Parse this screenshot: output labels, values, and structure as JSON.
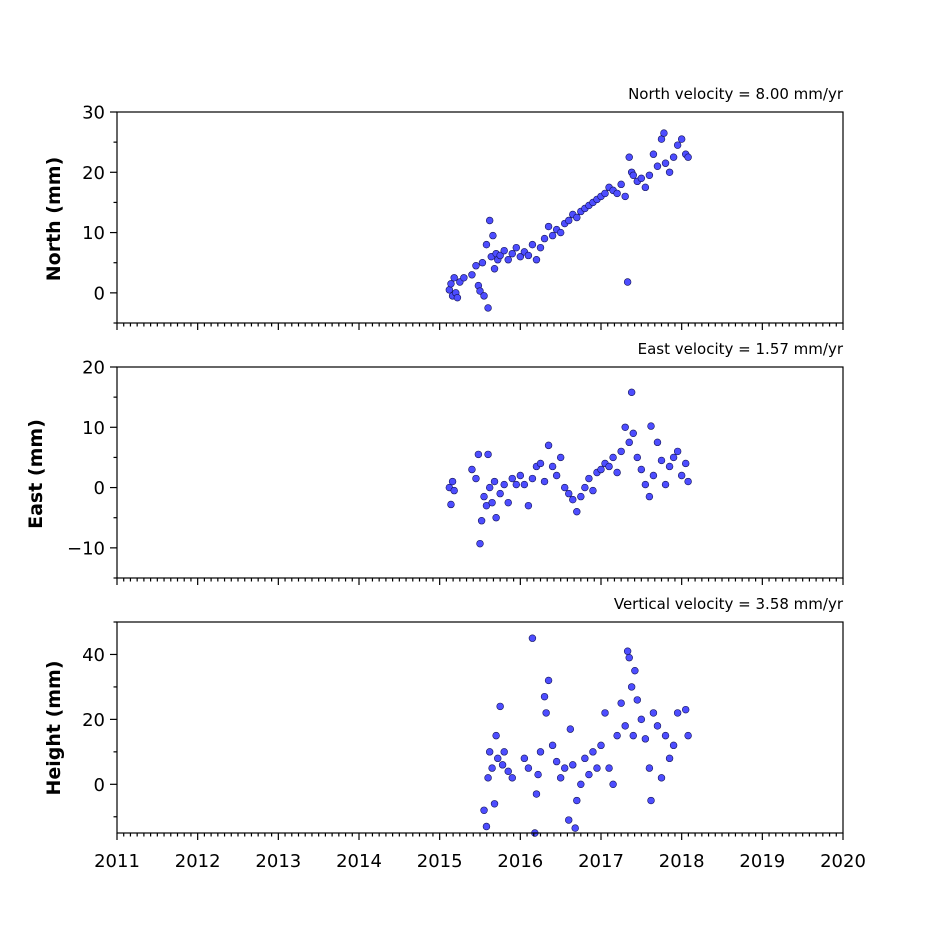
{
  "chart_data": [
    {
      "type": "scatter",
      "title": "North velocity = 8.00 mm/yr",
      "ylabel": "North (mm)",
      "xlim": [
        2011,
        2020
      ],
      "ylim": [
        -5,
        30
      ],
      "yticks": [
        0,
        10,
        20,
        30
      ],
      "xticks": [
        2011,
        2012,
        2013,
        2014,
        2015,
        2016,
        2017,
        2018,
        2019,
        2020
      ],
      "x_tick_labels_shown": false,
      "series": [
        {
          "x": [
            2015.12,
            2015.14,
            2015.16,
            2015.18,
            2015.2,
            2015.22,
            2015.25,
            2015.3,
            2015.4,
            2015.45,
            2015.48,
            2015.5,
            2015.53,
            2015.55,
            2015.58,
            2015.6,
            2015.62,
            2015.64,
            2015.66,
            2015.68,
            2015.7,
            2015.72,
            2015.75,
            2015.8,
            2015.85,
            2015.9,
            2015.95,
            2016.0,
            2016.05,
            2016.1,
            2016.15,
            2016.2,
            2016.25,
            2016.3,
            2016.35,
            2016.4,
            2016.45,
            2016.5,
            2016.55,
            2016.6,
            2016.65,
            2016.7,
            2016.75,
            2016.8,
            2016.85,
            2016.9,
            2016.95,
            2017.0,
            2017.05,
            2017.1,
            2017.15,
            2017.2,
            2017.25,
            2017.3,
            2017.33,
            2017.35,
            2017.38,
            2017.4,
            2017.45,
            2017.5,
            2017.55,
            2017.6,
            2017.65,
            2017.7,
            2017.75,
            2017.78,
            2017.8,
            2017.85,
            2017.9,
            2017.95,
            2018.0,
            2018.05,
            2018.08
          ],
          "y": [
            0.5,
            1.5,
            -0.5,
            2.5,
            0.0,
            -0.8,
            1.8,
            2.5,
            3.0,
            4.5,
            1.2,
            0.3,
            5.0,
            -0.5,
            8.0,
            -2.5,
            12.0,
            6.0,
            9.5,
            4.0,
            6.5,
            5.5,
            6.2,
            7.0,
            5.5,
            6.5,
            7.5,
            6.0,
            6.8,
            6.2,
            8.0,
            5.5,
            7.5,
            9.0,
            11.0,
            9.5,
            10.5,
            10.0,
            11.5,
            12.0,
            13.0,
            12.5,
            13.5,
            14.0,
            14.5,
            15.0,
            15.5,
            16.0,
            16.5,
            17.5,
            17.0,
            16.5,
            18.0,
            16.0,
            1.8,
            22.5,
            20.0,
            19.5,
            18.5,
            19.0,
            17.5,
            19.5,
            23.0,
            21.0,
            25.5,
            26.5,
            21.5,
            20.0,
            22.5,
            24.5,
            25.5,
            23.0,
            22.5
          ]
        }
      ]
    },
    {
      "type": "scatter",
      "title": "East velocity = 1.57 mm/yr",
      "ylabel": "East (mm)",
      "xlim": [
        2011,
        2020
      ],
      "ylim": [
        -15,
        20
      ],
      "yticks": [
        -10,
        0,
        10,
        20
      ],
      "xticks": [
        2011,
        2012,
        2013,
        2014,
        2015,
        2016,
        2017,
        2018,
        2019,
        2020
      ],
      "x_tick_labels_shown": false,
      "series": [
        {
          "x": [
            2015.12,
            2015.14,
            2015.16,
            2015.18,
            2015.4,
            2015.45,
            2015.48,
            2015.5,
            2015.52,
            2015.55,
            2015.58,
            2015.6,
            2015.62,
            2015.65,
            2015.68,
            2015.7,
            2015.75,
            2015.8,
            2015.85,
            2015.9,
            2015.95,
            2016.0,
            2016.05,
            2016.1,
            2016.15,
            2016.2,
            2016.25,
            2016.3,
            2016.35,
            2016.4,
            2016.45,
            2016.5,
            2016.55,
            2016.6,
            2016.65,
            2016.7,
            2016.75,
            2016.8,
            2016.85,
            2016.9,
            2016.95,
            2017.0,
            2017.05,
            2017.1,
            2017.15,
            2017.2,
            2017.25,
            2017.3,
            2017.35,
            2017.38,
            2017.4,
            2017.45,
            2017.5,
            2017.55,
            2017.6,
            2017.62,
            2017.65,
            2017.7,
            2017.75,
            2017.8,
            2017.85,
            2017.9,
            2017.95,
            2018.0,
            2018.05,
            2018.08
          ],
          "y": [
            0.0,
            -2.8,
            1.0,
            -0.5,
            3.0,
            1.5,
            5.5,
            -9.3,
            -5.5,
            -1.5,
            -3.0,
            5.5,
            0.0,
            -2.5,
            1.0,
            -5.0,
            -1.0,
            0.5,
            -2.5,
            1.5,
            0.5,
            2.0,
            0.5,
            -3.0,
            1.5,
            3.5,
            4.0,
            1.0,
            7.0,
            3.5,
            2.0,
            5.0,
            0.0,
            -1.0,
            -2.0,
            -4.0,
            -1.5,
            0.0,
            1.5,
            -0.5,
            2.5,
            3.0,
            4.0,
            3.5,
            5.0,
            2.5,
            6.0,
            10.0,
            7.5,
            15.8,
            9.0,
            5.0,
            3.0,
            0.5,
            -1.5,
            10.2,
            2.0,
            7.5,
            4.5,
            0.5,
            3.5,
            5.0,
            6.0,
            2.0,
            4.0,
            1.0
          ]
        }
      ]
    },
    {
      "type": "scatter",
      "title": "Vertical velocity = 3.58 mm/yr",
      "ylabel": "Height (mm)",
      "xlim": [
        2011,
        2020
      ],
      "ylim": [
        -15,
        50
      ],
      "yticks": [
        0,
        20,
        40
      ],
      "xticks": [
        2011,
        2012,
        2013,
        2014,
        2015,
        2016,
        2017,
        2018,
        2019,
        2020
      ],
      "xtick_labels": [
        "2011",
        "2012",
        "2013",
        "2014",
        "2015",
        "2016",
        "2017",
        "2018",
        "2019",
        "2020"
      ],
      "x_tick_labels_shown": true,
      "series": [
        {
          "x": [
            2015.55,
            2015.58,
            2015.6,
            2015.62,
            2015.65,
            2015.68,
            2015.7,
            2015.72,
            2015.75,
            2015.78,
            2015.8,
            2015.85,
            2015.9,
            2016.05,
            2016.1,
            2016.15,
            2016.18,
            2016.2,
            2016.22,
            2016.25,
            2016.3,
            2016.32,
            2016.35,
            2016.4,
            2016.45,
            2016.5,
            2016.55,
            2016.6,
            2016.62,
            2016.65,
            2016.68,
            2016.7,
            2016.75,
            2016.8,
            2016.85,
            2016.9,
            2016.95,
            2017.0,
            2017.05,
            2017.1,
            2017.15,
            2017.2,
            2017.25,
            2017.3,
            2017.33,
            2017.35,
            2017.38,
            2017.4,
            2017.42,
            2017.45,
            2017.5,
            2017.55,
            2017.6,
            2017.62,
            2017.65,
            2017.7,
            2017.75,
            2017.8,
            2017.85,
            2017.9,
            2017.95,
            2018.05,
            2018.08
          ],
          "y": [
            -8.0,
            -13.0,
            2.0,
            10.0,
            5.0,
            -6.0,
            15.0,
            8.0,
            24.0,
            6.0,
            10.0,
            4.0,
            2.0,
            8.0,
            5.0,
            45.0,
            -15.0,
            -3.0,
            3.0,
            10.0,
            27.0,
            22.0,
            32.0,
            12.0,
            7.0,
            2.0,
            5.0,
            -11.0,
            17.0,
            6.0,
            -13.5,
            -5.0,
            0.0,
            8.0,
            3.0,
            10.0,
            5.0,
            12.0,
            22.0,
            5.0,
            0.0,
            15.0,
            25.0,
            18.0,
            41.0,
            39.0,
            30.0,
            15.0,
            35.0,
            26.0,
            20.0,
            14.0,
            5.0,
            -5.0,
            22.0,
            18.0,
            2.0,
            15.0,
            8.0,
            12.0,
            22.0,
            23.0,
            15.0
          ]
        }
      ]
    }
  ]
}
